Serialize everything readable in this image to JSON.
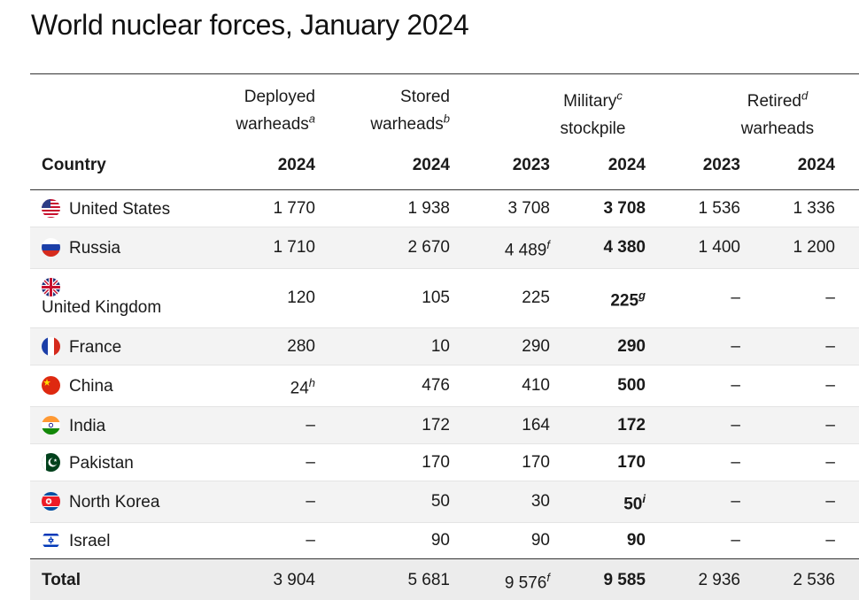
{
  "title": "World nuclear forces, January 2024",
  "headers": {
    "country": "Country",
    "deployed": {
      "line1": "Deployed",
      "line2": "warheads",
      "note": "a"
    },
    "stored": {
      "line1": "Stored",
      "line2": "warheads",
      "note": "b"
    },
    "military": {
      "line1": "Military",
      "line2": "stockpile",
      "note": "c"
    },
    "retired": {
      "line1": "Retired",
      "line2": "warheads",
      "note": "d"
    },
    "years": {
      "deployed": "2024",
      "stored": "2024",
      "military_2023": "2023",
      "military_2024": "2024",
      "retired_2023": "2023",
      "retired_2024": "2024"
    }
  },
  "rows": [
    {
      "country": "United States",
      "flag": "us-flag-icon",
      "deployed": "1 770",
      "stored": "1 938",
      "mil2023": "3 708",
      "mil2024": "3 708",
      "ret2023": "1 536",
      "ret2024": "1 336"
    },
    {
      "country": "Russia",
      "flag": "russia-flag-icon",
      "deployed": "1 710",
      "stored": "2 670",
      "mil2023": "4 489",
      "mil2023_note": "f",
      "mil2024": "4 380",
      "ret2023": "1 400",
      "ret2024": "1 200"
    },
    {
      "country": "United Kingdom",
      "flag": "uk-flag-icon",
      "deployed": "120",
      "stored": "105",
      "mil2023": "225",
      "mil2024": "225",
      "mil2024_note": "g",
      "ret2023": "–",
      "ret2024": "–"
    },
    {
      "country": "France",
      "flag": "france-flag-icon",
      "deployed": "280",
      "stored": "10",
      "mil2023": "290",
      "mil2024": "290",
      "ret2023": "–",
      "ret2024": "–"
    },
    {
      "country": "China",
      "flag": "china-flag-icon",
      "deployed": "24",
      "deployed_note": "h",
      "stored": "476",
      "mil2023": "410",
      "mil2024": "500",
      "ret2023": "–",
      "ret2024": "–"
    },
    {
      "country": "India",
      "flag": "india-flag-icon",
      "deployed": "–",
      "stored": "172",
      "mil2023": "164",
      "mil2024": "172",
      "ret2023": "–",
      "ret2024": "–"
    },
    {
      "country": "Pakistan",
      "flag": "pakistan-flag-icon",
      "deployed": "–",
      "stored": "170",
      "mil2023": "170",
      "mil2024": "170",
      "ret2023": "–",
      "ret2024": "–"
    },
    {
      "country": "North Korea",
      "flag": "north-korea-flag-icon",
      "deployed": "–",
      "stored": "50",
      "mil2023": "30",
      "mil2024": "50",
      "mil2024_note": "i",
      "ret2023": "–",
      "ret2024": "–"
    },
    {
      "country": "Israel",
      "flag": "israel-flag-icon",
      "deployed": "–",
      "stored": "90",
      "mil2023": "90",
      "mil2024": "90",
      "ret2023": "–",
      "ret2024": "–"
    }
  ],
  "total": {
    "label": "Total",
    "deployed": "3 904",
    "stored": "5 681",
    "mil2023": "9 576",
    "mil2023_note": "f",
    "mil2024": "9 585",
    "ret2023": "2 936",
    "ret2024": "2 536"
  }
}
